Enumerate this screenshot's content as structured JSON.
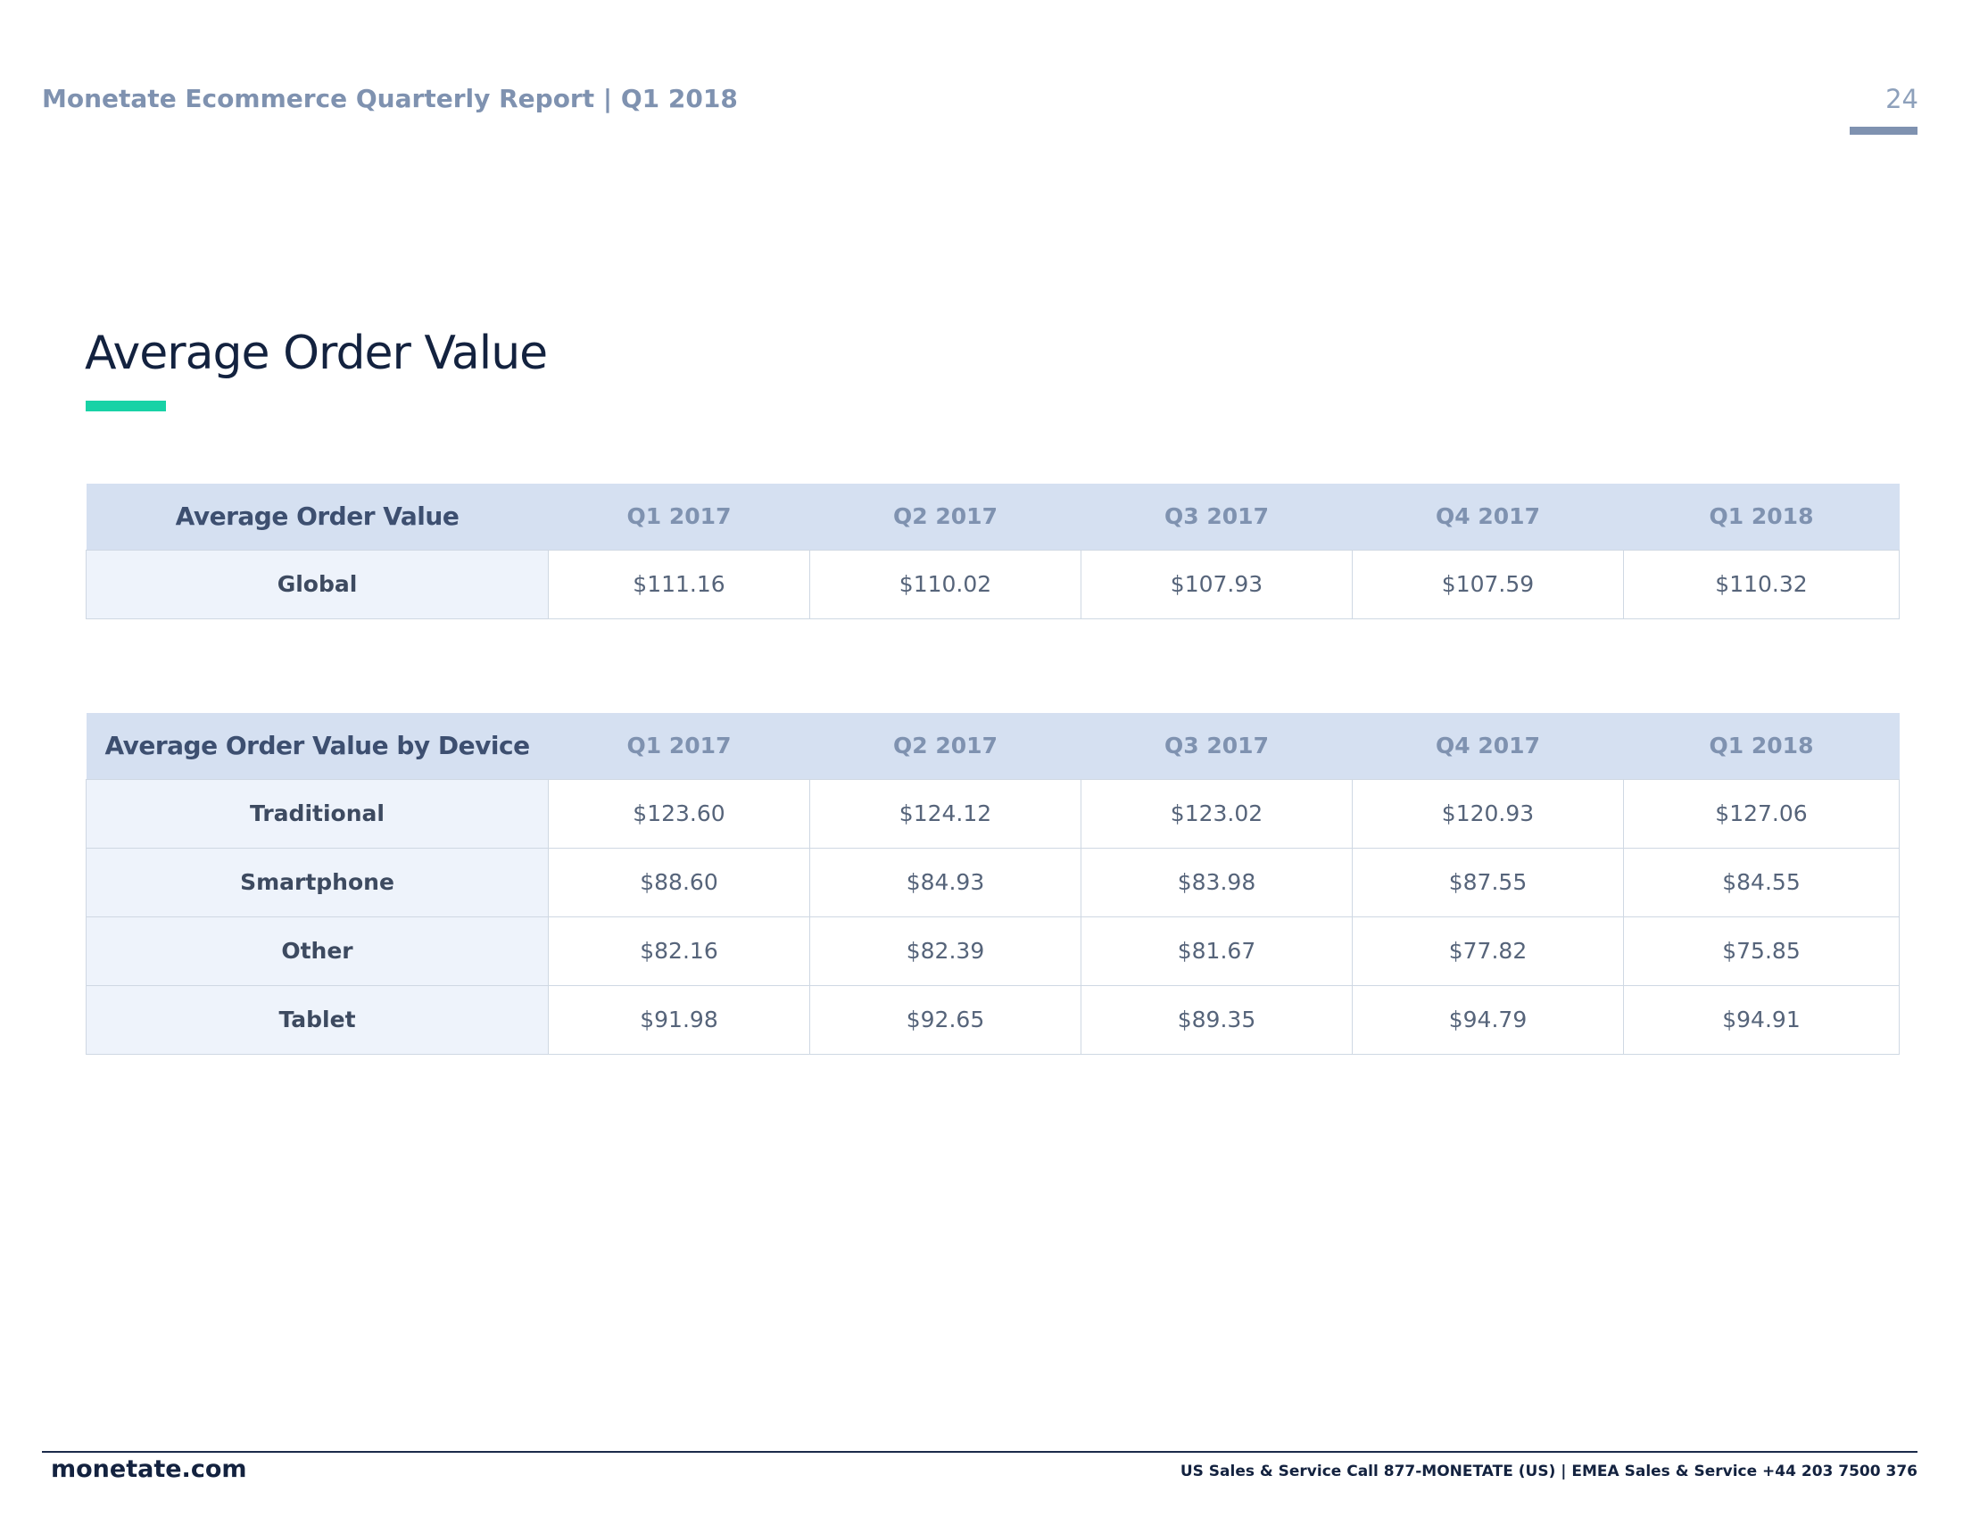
{
  "header": {
    "title": "Monetate Ecommerce Quarterly Report | Q1 2018",
    "page_number": "24"
  },
  "section": {
    "title": "Average Order Value"
  },
  "tables": [
    {
      "heading": "Average Order Value",
      "columns": [
        "Q1 2017",
        "Q2 2017",
        "Q3 2017",
        "Q4 2017",
        "Q1 2018"
      ],
      "rows": [
        {
          "label": "Global",
          "values": [
            "$111.16",
            "$110.02",
            "$107.93",
            "$107.59",
            "$110.32"
          ]
        }
      ]
    },
    {
      "heading": "Average Order Value by Device",
      "columns": [
        "Q1 2017",
        "Q2 2017",
        "Q3 2017",
        "Q4 2017",
        "Q1 2018"
      ],
      "rows": [
        {
          "label": "Traditional",
          "values": [
            "$123.60",
            "$124.12",
            "$123.02",
            "$120.93",
            "$127.06"
          ]
        },
        {
          "label": "Smartphone",
          "values": [
            "$88.60",
            "$84.93",
            "$83.98",
            "$87.55",
            "$84.55"
          ]
        },
        {
          "label": "Other",
          "values": [
            "$82.16",
            "$82.39",
            "$81.67",
            "$77.82",
            "$75.85"
          ]
        },
        {
          "label": "Tablet",
          "values": [
            "$91.98",
            "$92.65",
            "$89.35",
            "$94.79",
            "$94.91"
          ]
        }
      ]
    }
  ],
  "footer": {
    "site": "monetate.com",
    "contact": "US Sales & Service Call 877-MONETATE (US) | EMEA Sales & Service +44 203 7500 376"
  },
  "colors": {
    "accent": "#18d2a6",
    "header_text": "#7f92b0",
    "table_header_bg": "#d5e0f1",
    "row_label_bg": "#eef3fb",
    "navy": "#13223f"
  }
}
